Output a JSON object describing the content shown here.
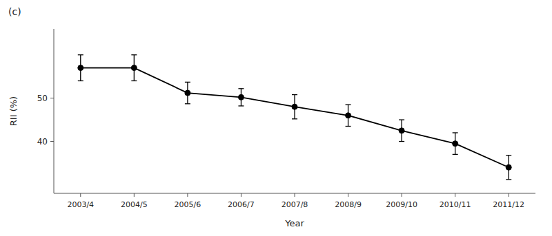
{
  "chart_data": {
    "type": "line",
    "annotations": [
      "(c)"
    ],
    "x_label": "Year",
    "y_label": "RII (%)",
    "categories": [
      "2003/4",
      "2004/5",
      "2005/6",
      "2006/7",
      "2007/8",
      "2008/9",
      "2009/10",
      "2010/11",
      "2011/12"
    ],
    "values": [
      57.0,
      57.0,
      51.2,
      50.2,
      48.0,
      46.0,
      42.5,
      39.5,
      34.0
    ],
    "error_lower": [
      3.0,
      3.0,
      2.5,
      2.0,
      2.8,
      2.5,
      2.5,
      2.5,
      2.8
    ],
    "error_upper": [
      3.0,
      3.0,
      2.5,
      2.0,
      2.8,
      2.5,
      2.5,
      2.5,
      2.8
    ],
    "ylim": [
      28,
      66
    ],
    "yticks": [
      40,
      50
    ],
    "color": "#000000",
    "marker": "circle",
    "grid": false
  }
}
